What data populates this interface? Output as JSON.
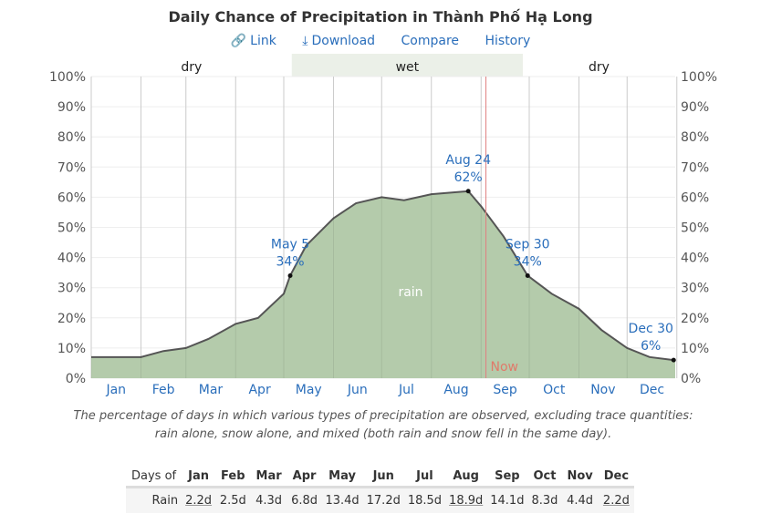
{
  "header": {
    "title": "Daily Chance of Precipitation in Thành Phố Hạ Long",
    "links": [
      "Link",
      "Download",
      "Compare",
      "History"
    ],
    "icons": [
      "link-icon",
      "download-icon"
    ]
  },
  "chart_data": {
    "type": "area",
    "title": "Daily Chance of Precipitation in Thành Phố Hạ Long",
    "ylim": [
      0,
      100
    ],
    "yticks": [
      "0%",
      "10%",
      "20%",
      "30%",
      "40%",
      "50%",
      "60%",
      "70%",
      "80%",
      "90%",
      "100%"
    ],
    "xticks": [
      "Jan",
      "Feb",
      "Mar",
      "Apr",
      "May",
      "Jun",
      "Jul",
      "Aug",
      "Sep",
      "Oct",
      "Nov",
      "Dec"
    ],
    "seasons": [
      {
        "label": "dry",
        "from": "Jan 1",
        "to": "May 6"
      },
      {
        "label": "wet",
        "from": "May 6",
        "to": "Sep 27"
      },
      {
        "label": "dry",
        "from": "Sep 27",
        "to": "Dec 31"
      }
    ],
    "series": [
      {
        "name": "rain",
        "color": "#b4cbab",
        "x_day": [
          1,
          15,
          32,
          46,
          60,
          74,
          91,
          105,
          121,
          125,
          135,
          152,
          166,
          182,
          196,
          213,
          236,
          244,
          258,
          273,
          288,
          305,
          319,
          335,
          349,
          364
        ],
        "y": [
          7,
          7,
          7,
          9,
          10,
          13,
          18,
          20,
          28,
          34,
          44,
          53,
          58,
          60,
          59,
          61,
          62,
          57,
          47,
          34,
          28,
          23,
          16,
          10,
          7,
          6
        ]
      }
    ],
    "annotations": [
      {
        "date": "May 5",
        "value": "34%"
      },
      {
        "date": "Aug 24",
        "value": "62%"
      },
      {
        "date": "Sep 30",
        "value": "34%"
      },
      {
        "date": "Dec 30",
        "value": "6%"
      }
    ],
    "now_label": "Now",
    "now_day": 247,
    "grid": true
  },
  "caption": "The percentage of days in which various types of precipitation are observed, excluding trace quantities: rain alone, snow alone, and mixed (both rain and snow fell in the same day).",
  "table": {
    "header_label": "Days of",
    "months": [
      "Jan",
      "Feb",
      "Mar",
      "Apr",
      "May",
      "Jun",
      "Jul",
      "Aug",
      "Sep",
      "Oct",
      "Nov",
      "Dec"
    ],
    "row_label": "Rain",
    "values": [
      "2.2d",
      "2.5d",
      "4.3d",
      "6.8d",
      "13.4d",
      "17.2d",
      "18.5d",
      "18.9d",
      "14.1d",
      "8.3d",
      "4.4d",
      "2.2d"
    ]
  }
}
